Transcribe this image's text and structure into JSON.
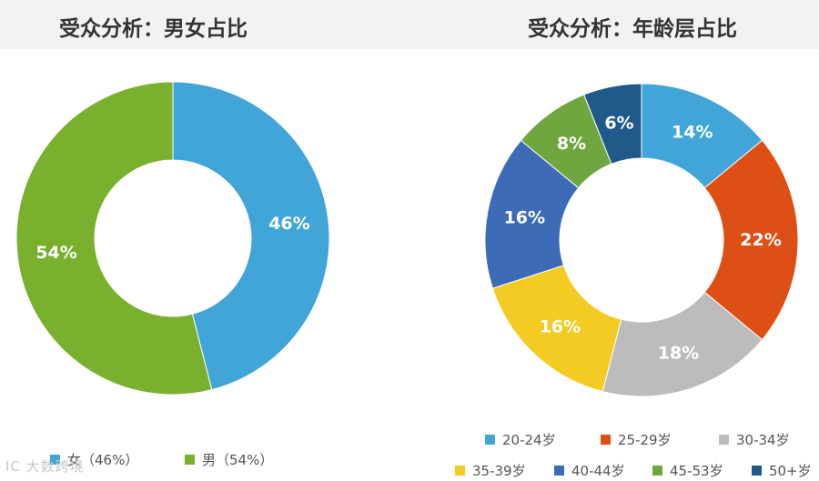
{
  "watermark_text": "IC 大数跨境",
  "chart_data": [
    {
      "type": "pie",
      "style": "donut",
      "title": "受众分析：男女占比",
      "slices": [
        {
          "name": "女",
          "value": 46,
          "label": "46%",
          "legend": "女（46%）",
          "color": "#41a5d8"
        },
        {
          "name": "男",
          "value": 54,
          "label": "54%",
          "legend": "男（54%）",
          "color": "#79b02d"
        }
      ],
      "legend_position": "bottom-left"
    },
    {
      "type": "pie",
      "style": "donut",
      "title": "受众分析：年龄层占比",
      "slices": [
        {
          "name": "20-24岁",
          "value": 14,
          "label": "14%",
          "color": "#41a5d8"
        },
        {
          "name": "25-29岁",
          "value": 22,
          "label": "22%",
          "color": "#dd4f15"
        },
        {
          "name": "30-34岁",
          "value": 18,
          "label": "18%",
          "color": "#bcbcbc"
        },
        {
          "name": "35-39岁",
          "value": 16,
          "label": "16%",
          "color": "#f4cb22"
        },
        {
          "name": "40-44岁",
          "value": 16,
          "label": "16%",
          "color": "#3e6bb8"
        },
        {
          "name": "45-53岁",
          "value": 8,
          "label": "8%",
          "color": "#6fa63f"
        },
        {
          "name": "50+岁",
          "value": 6,
          "label": "6%",
          "color": "#1f5a8a"
        }
      ],
      "legend_position": "bottom"
    }
  ]
}
